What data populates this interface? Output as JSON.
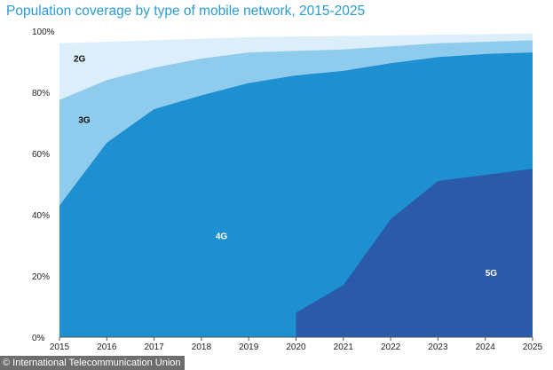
{
  "chart_data": {
    "type": "area",
    "title": "Population coverage by type of mobile network, 2015-2025",
    "x": [
      "2015",
      "2016",
      "2017",
      "2018",
      "2019",
      "2020",
      "2021",
      "2022",
      "2023",
      "2024",
      "2025"
    ],
    "ylim": [
      0,
      100
    ],
    "yticks": [
      0,
      20,
      40,
      60,
      80,
      100
    ],
    "ytick_labels": [
      "0%",
      "20%",
      "40%",
      "60%",
      "80%",
      "100%"
    ],
    "xlabel": "",
    "ylabel": "",
    "grid": false,
    "series": [
      {
        "name": "2G",
        "label": "2G",
        "color": "#dbeef9",
        "label_color": "#111111",
        "label_at": [
          2015.3,
          90
        ],
        "values": [
          96,
          96.5,
          97,
          97.5,
          98,
          98.2,
          98.4,
          98.6,
          98.8,
          99,
          99.2
        ]
      },
      {
        "name": "3G",
        "label": "3G",
        "color": "#8fcbec",
        "label_color": "#111111",
        "label_at": [
          2015.4,
          70
        ],
        "values": [
          77.5,
          84,
          88,
          91,
          93,
          93.5,
          94,
          95,
          96,
          96.5,
          97
        ]
      },
      {
        "name": "4G",
        "label": "4G",
        "color": "#1e8fd0",
        "label_color": "#ffffff",
        "label_at": [
          2018.3,
          32
        ],
        "values": [
          43,
          63.5,
          74.5,
          79,
          83,
          85.5,
          87,
          89.5,
          91.5,
          92.5,
          93
        ]
      },
      {
        "name": "5G",
        "label": "5G",
        "color": "#2a5aa8",
        "label_color": "#ffffff",
        "label_at": [
          2024.0,
          20
        ],
        "values": [
          null,
          null,
          null,
          null,
          null,
          8,
          17,
          38.5,
          51,
          53,
          55
        ]
      }
    ]
  },
  "credit": "© International Telecommunication Union"
}
